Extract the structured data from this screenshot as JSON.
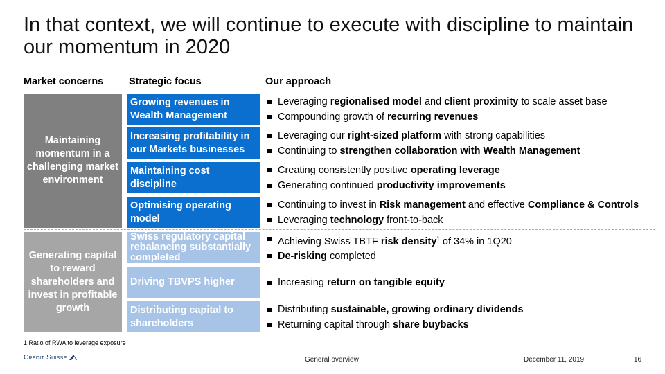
{
  "title": "In that context, we will continue to execute with discipline to maintain our momentum in 2020",
  "headers": {
    "concerns": "Market concerns",
    "focus": "Strategic focus",
    "approach": "Our approach"
  },
  "concerns": [
    "Maintaining momentum in a challenging market environment",
    "Generating capital to reward shareholders and invest in profitable growth"
  ],
  "rows": [
    {
      "focus": "Growing revenues in Wealth Management",
      "bullets": [
        [
          [
            "Leveraging ",
            0
          ],
          [
            "regionalised model",
            1
          ],
          [
            " and ",
            0
          ],
          [
            "client proximity",
            1
          ],
          [
            " to scale asset base",
            0
          ]
        ],
        [
          [
            "Compounding growth of ",
            0
          ],
          [
            "recurring revenues",
            1
          ]
        ]
      ]
    },
    {
      "focus": "Increasing profitability in our Markets businesses",
      "bullets": [
        [
          [
            "Leveraging our ",
            0
          ],
          [
            "right-sized platform",
            1
          ],
          [
            " with strong capabilities",
            0
          ]
        ],
        [
          [
            "Continuing to ",
            0
          ],
          [
            "strengthen collaboration with Wealth Management",
            1
          ]
        ]
      ]
    },
    {
      "focus": "Maintaining cost discipline",
      "bullets": [
        [
          [
            "Creating consistently positive ",
            0
          ],
          [
            "operating leverage",
            1
          ]
        ],
        [
          [
            "Generating continued ",
            0
          ],
          [
            "productivity improvements",
            1
          ]
        ]
      ]
    },
    {
      "focus": "Optimising operating model",
      "bullets": [
        [
          [
            "Continuing to invest in ",
            0
          ],
          [
            "Risk management",
            1
          ],
          [
            " and effective ",
            0
          ],
          [
            "Compliance & Controls",
            1
          ]
        ],
        [
          [
            "Leveraging ",
            0
          ],
          [
            "technology",
            1
          ],
          [
            " front-to-back",
            0
          ]
        ]
      ]
    },
    {
      "focus": "Swiss regulatory capital rebalancing substantially completed",
      "bullets": [
        [
          [
            "Achieving Swiss TBTF ",
            0
          ],
          [
            "risk density",
            1
          ],
          [
            "1",
            2
          ],
          [
            " of 34% in 1Q20",
            0
          ]
        ],
        [
          [
            "De-risking",
            1
          ],
          [
            " completed",
            0
          ]
        ]
      ]
    },
    {
      "focus": "Driving TBVPS higher",
      "bullets": [
        [
          [
            "Increasing ",
            0
          ],
          [
            "return on tangible equity",
            1
          ]
        ]
      ]
    },
    {
      "focus": "Distributing capital to shareholders",
      "bullets": [
        [
          [
            "Distributing ",
            0
          ],
          [
            "sustainable, growing ordinary dividends",
            1
          ]
        ],
        [
          [
            "Returning capital through ",
            0
          ],
          [
            "share buybacks",
            1
          ]
        ]
      ]
    }
  ],
  "footnote": "1 Ratio of RWA to leverage exposure",
  "footer": {
    "logo": "Credit Suisse",
    "section": "General overview",
    "date": "December 11, 2019",
    "page": "16"
  },
  "colors": {
    "dark_blue": "#0b6fcf",
    "light_blue": "#a7c3e6",
    "dark_gray": "#808080",
    "light_gray": "#a6a6a6"
  }
}
